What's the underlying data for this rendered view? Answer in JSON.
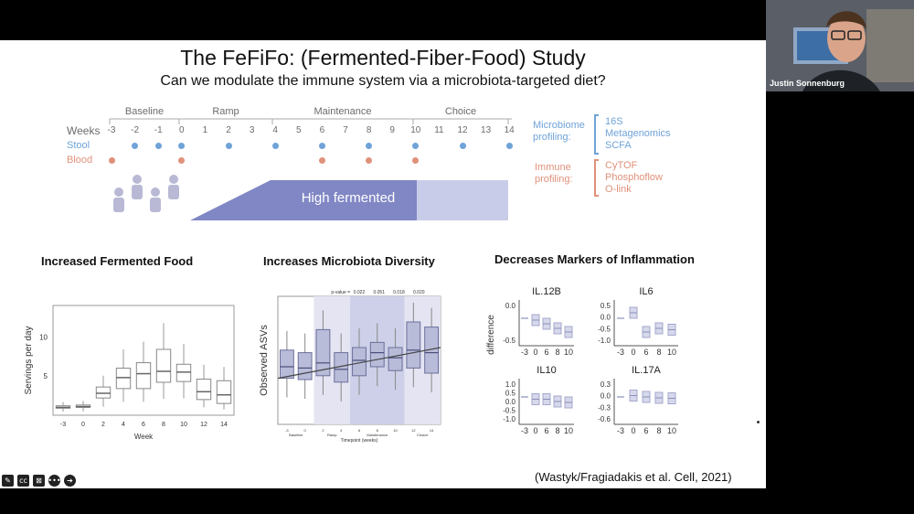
{
  "slide": {
    "title": "The FeFiFo: (Fermented-Fiber-Food) Study",
    "subtitle": "Can we modulate the immune system via a microbiota-targeted diet?",
    "citation": "(Wastyk/Fragiadakis et al. Cell, 2021)"
  },
  "timeline": {
    "weeks_label": "Weeks",
    "stool_label": "Stool",
    "blood_label": "Blood",
    "weeks": [
      "-3",
      "-2",
      "-1",
      "0",
      "1",
      "2",
      "3",
      "4",
      "5",
      "6",
      "7",
      "8",
      "9",
      "10",
      "11",
      "12",
      "13",
      "14"
    ],
    "phases": [
      "Baseline",
      "Ramp",
      "Maintenance",
      "Choice"
    ],
    "intervention_label": "High fermented",
    "stool_weeks": [
      "-2",
      "-1",
      "0",
      "2",
      "4",
      "6",
      "8",
      "10",
      "12",
      "14"
    ],
    "blood_weeks": [
      "-3",
      "0",
      "6",
      "8",
      "10"
    ],
    "stool_color": "#6fa3d8",
    "blood_color": "#e0917a"
  },
  "profiling": {
    "microbiome_label": "Microbiome profiling:",
    "microbiome_items": [
      "16S",
      "Metagenomics",
      "SCFA"
    ],
    "immune_label": "Immune profiling:",
    "immune_items": [
      "CyTOF",
      "Phosphoflow",
      "O-link"
    ]
  },
  "webcam": {
    "name": "Justin Sonnenburg"
  },
  "controls": [
    "pencil-icon",
    "cc-icon",
    "camera-off-icon",
    "more-icon",
    "next-icon"
  ],
  "chart_data": [
    {
      "type": "box",
      "title": "Increased Fermented Food",
      "xlabel": "Week",
      "ylabel": "Servings per day",
      "categories": [
        "-3",
        "0",
        "2",
        "4",
        "6",
        "8",
        "10",
        "12",
        "14"
      ],
      "ylim": [
        0,
        14
      ],
      "yticks": [
        "5",
        "10"
      ],
      "median": [
        1,
        1.1,
        2.8,
        4.8,
        5.3,
        5.6,
        5.5,
        3.0,
        2.6
      ],
      "q1": [
        0.9,
        1.0,
        2.2,
        3.4,
        3.4,
        4.2,
        4.3,
        2.0,
        1.5
      ],
      "q3": [
        1.2,
        1.3,
        3.6,
        6.0,
        6.7,
        8.4,
        6.5,
        4.6,
        4.4
      ]
    },
    {
      "type": "box",
      "title": "Increases Microbiota Diversity",
      "xlabel": "Timepoint (weeks)",
      "ylabel": "Observed ASVs",
      "categories": [
        "-3",
        "0",
        "2",
        "4",
        "6",
        "8",
        "10",
        "12",
        "14"
      ],
      "phases": [
        "Baseline",
        "Ramp",
        "Maintenance",
        "Choice"
      ],
      "pvalue_label": "p-value =",
      "pvalues": [
        "0.022",
        "0.051",
        "0.018",
        "0.020"
      ],
      "median": [
        0.45,
        0.44,
        0.48,
        0.43,
        0.5,
        0.56,
        0.52,
        0.58,
        0.56
      ],
      "q1": [
        0.36,
        0.35,
        0.38,
        0.33,
        0.38,
        0.45,
        0.42,
        0.44,
        0.4
      ],
      "q3": [
        0.58,
        0.56,
        0.74,
        0.56,
        0.6,
        0.64,
        0.6,
        0.8,
        0.76
      ]
    },
    {
      "type": "box",
      "title": "Decreases Markers of Inflammation",
      "ylabel": "difference",
      "panels": [
        {
          "name": "IL.12B",
          "yticks": [
            "0.0",
            "-0.5"
          ],
          "categories": [
            "-3",
            "0",
            "6",
            "8",
            "10"
          ],
          "median": [
            0,
            -0.04,
            -0.12,
            -0.22,
            -0.3
          ]
        },
        {
          "name": "IL6",
          "yticks": [
            "0.5",
            "0.0",
            "-0.5",
            "-1.0"
          ],
          "categories": [
            "-3",
            "0",
            "6",
            "8",
            "10"
          ],
          "median": [
            0,
            0.12,
            -0.3,
            -0.22,
            -0.25
          ]
        },
        {
          "name": "IL10",
          "yticks": [
            "1.0",
            "0.5",
            "0.0",
            "-0.5",
            "-1.0"
          ],
          "categories": [
            "-3",
            "0",
            "6",
            "8",
            "10"
          ],
          "median": [
            0,
            -0.05,
            -0.05,
            -0.1,
            -0.12
          ]
        },
        {
          "name": "IL.17A",
          "yticks": [
            "0.3",
            "0.0",
            "-0.3",
            "-0.6"
          ],
          "categories": [
            "-3",
            "0",
            "6",
            "8",
            "10"
          ],
          "median": [
            0,
            0.03,
            0.0,
            -0.02,
            -0.03
          ]
        }
      ]
    }
  ]
}
